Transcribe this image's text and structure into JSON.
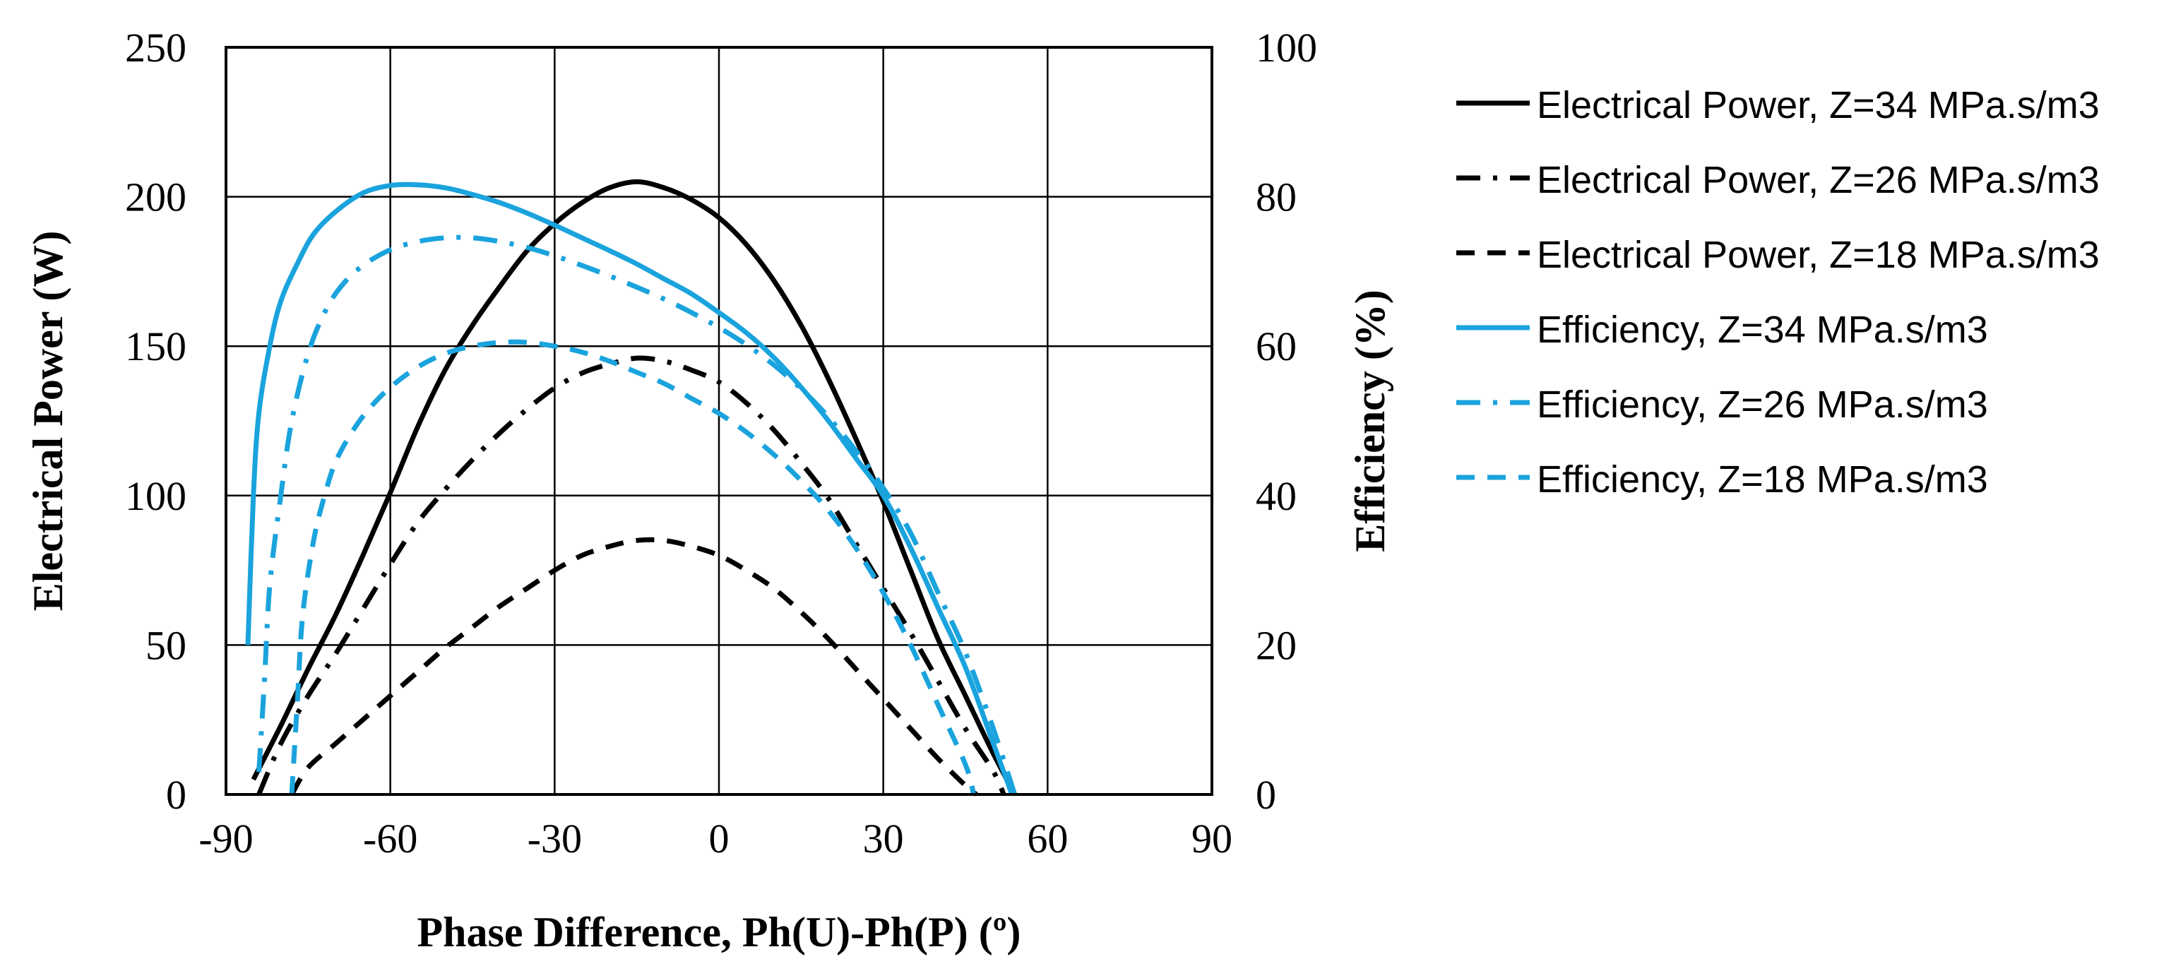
{
  "chart_data": {
    "type": "line",
    "title": "",
    "xlabel": "Phase Difference, Ph(U)-Ph(P) (º)",
    "ylabel": "Electrical Power (W)",
    "y2label": "Efficiency (%)",
    "xlim": [
      -90,
      90
    ],
    "ylim": [
      0,
      250
    ],
    "y2lim": [
      0,
      100
    ],
    "xticks": [
      "-90",
      "-60",
      "-30",
      "0",
      "30",
      "60",
      "90"
    ],
    "yticks": [
      "0",
      "50",
      "100",
      "150",
      "200",
      "250"
    ],
    "y2ticks": [
      "0",
      "20",
      "40",
      "60",
      "80",
      "100"
    ],
    "grid": true,
    "legend_position": "right",
    "colors": {
      "power": "#000000",
      "efficiency": "#1aa3dd"
    },
    "series": [
      {
        "name": "Electrical Power, Z=34 MPa.s/m3",
        "axis": "left",
        "color": "#000000",
        "style": "solid",
        "x": [
          -85,
          -80,
          -75,
          -70,
          -65,
          -60,
          -55,
          -50,
          -45,
          -40,
          -35,
          -30,
          -25,
          -20,
          -15,
          -10,
          -5,
          0,
          5,
          10,
          15,
          20,
          25,
          30,
          35,
          40,
          45,
          50,
          54
        ],
        "y": [
          5,
          23,
          42,
          60,
          80,
          101,
          123,
          142,
          157,
          170,
          182,
          191,
          198,
          203,
          205,
          203,
          199,
          193,
          184,
          172,
          157,
          139,
          119,
          98,
          75,
          52,
          33,
          14,
          0
        ]
      },
      {
        "name": "Electrical Power, Z=26 MPa.s/m3",
        "axis": "left",
        "color": "#000000",
        "style": "dashdot",
        "x": [
          -84,
          -80,
          -75,
          -70,
          -65,
          -60,
          -55,
          -50,
          -45,
          -40,
          -35,
          -30,
          -25,
          -20,
          -15,
          -10,
          -5,
          0,
          5,
          10,
          15,
          20,
          25,
          30,
          35,
          40,
          45,
          50,
          52
        ],
        "y": [
          0,
          17,
          33,
          47,
          62,
          77,
          91,
          102,
          112,
          121,
          129,
          136,
          141,
          144,
          146,
          145,
          142,
          138,
          131,
          122,
          111,
          99,
          84,
          69,
          54,
          38,
          22,
          8,
          0
        ]
      },
      {
        "name": "Electrical Power, Z=18 MPa.s/m3",
        "axis": "left",
        "color": "#000000",
        "style": "dashed",
        "x": [
          -78,
          -75,
          -70,
          -65,
          -60,
          -55,
          -50,
          -45,
          -40,
          -35,
          -30,
          -25,
          -20,
          -15,
          -10,
          -5,
          0,
          5,
          10,
          15,
          20,
          25,
          30,
          35,
          40,
          45,
          47
        ],
        "y": [
          0,
          9,
          17,
          25,
          33,
          41,
          49,
          56,
          63,
          69,
          75,
          80,
          83,
          85,
          85,
          83,
          80,
          75,
          69,
          61,
          52,
          42,
          32,
          22,
          12,
          3,
          0
        ]
      },
      {
        "name": "Efficiency, Z=34 MPa.s/m3",
        "axis": "right",
        "color": "#1aa3dd",
        "style": "solid",
        "x": [
          -86,
          -85,
          -84,
          -82,
          -80,
          -77,
          -74,
          -70,
          -65,
          -60,
          -55,
          -50,
          -45,
          -40,
          -35,
          -30,
          -25,
          -20,
          -15,
          -10,
          -5,
          0,
          5,
          10,
          15,
          20,
          25,
          30,
          35,
          40,
          45,
          50,
          53.5
        ],
        "y": [
          20,
          40,
          51,
          60,
          66,
          71,
          75,
          78,
          80.5,
          81.5,
          81.6,
          81.2,
          80.3,
          79.2,
          77.8,
          76.2,
          74.5,
          72.8,
          71,
          69,
          67,
          64.5,
          61.8,
          58.5,
          54.5,
          50,
          45,
          40,
          33,
          25,
          17,
          7,
          0
        ]
      },
      {
        "name": "Efficiency, Z=26 MPa.s/m3",
        "axis": "right",
        "color": "#1aa3dd",
        "style": "dashdot",
        "x": [
          -84,
          -83,
          -82,
          -80,
          -78,
          -75,
          -72,
          -69,
          -65,
          -60,
          -55,
          -50,
          -45,
          -40,
          -35,
          -30,
          -25,
          -20,
          -15,
          -10,
          -5,
          0,
          5,
          10,
          15,
          20,
          25,
          30,
          35,
          40,
          45,
          50,
          54
        ],
        "y": [
          3,
          15,
          28,
          40,
          50,
          59,
          64.5,
          68,
          70.8,
          72.9,
          74,
          74.5,
          74.5,
          74,
          73.2,
          72.1,
          70.8,
          69.4,
          67.9,
          66.3,
          64.5,
          62.5,
          60.2,
          57.5,
          54.3,
          50.5,
          46,
          41,
          35,
          27,
          19,
          9,
          0
        ]
      },
      {
        "name": "Efficiency, Z=18 MPa.s/m3",
        "axis": "right",
        "color": "#1aa3dd",
        "style": "dashed",
        "x": [
          -78,
          -77,
          -76,
          -74,
          -72,
          -70,
          -67,
          -64,
          -60,
          -55,
          -50,
          -45,
          -40,
          -35,
          -30,
          -25,
          -20,
          -15,
          -10,
          -5,
          0,
          5,
          10,
          15,
          20,
          25,
          30,
          35,
          40,
          45,
          46.5
        ],
        "y": [
          0,
          12,
          24,
          34,
          40,
          44.5,
          48.5,
          51.5,
          54.5,
          57.2,
          59,
          60,
          60.5,
          60.5,
          60,
          59.2,
          58,
          56.5,
          55,
          53,
          51,
          48.5,
          45.5,
          42,
          38,
          33,
          27,
          20,
          12,
          4,
          0
        ]
      }
    ]
  }
}
